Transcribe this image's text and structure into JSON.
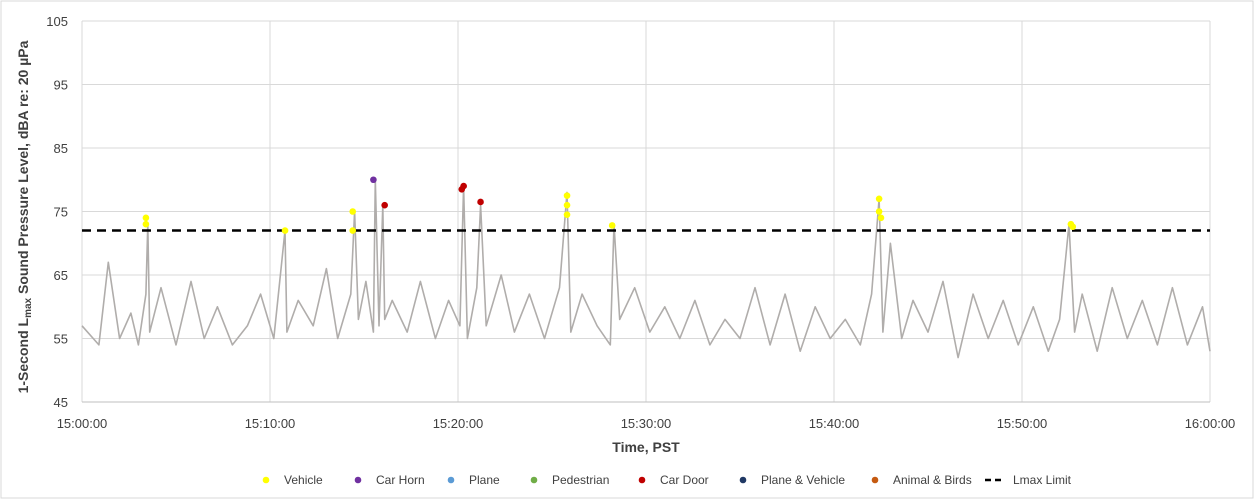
{
  "chart_data": {
    "type": "scatter",
    "title": "",
    "xlabel": "Time, PST",
    "ylabel_pre": "1-Second L",
    "ylabel_sub": "max",
    "ylabel_post": " Sound Pressure Level, dBA re: 20 µPa",
    "xlim_min": [
      0,
      60
    ],
    "x_tick_labels": [
      "15:00:00",
      "15:10:00",
      "15:20:00",
      "15:30:00",
      "15:40:00",
      "15:50:00",
      "16:00:00"
    ],
    "x_tick_values": [
      0,
      10,
      20,
      30,
      40,
      50,
      60
    ],
    "ylim": [
      45,
      105
    ],
    "y_ticks": [
      45,
      55,
      65,
      75,
      85,
      95,
      105
    ],
    "y_tick_labels": [
      "45",
      "55",
      "65",
      "75",
      "85",
      "95",
      "105"
    ],
    "grid": true,
    "legend_placement": "bottom",
    "trace": {
      "color": "#b0adab",
      "x_min": [
        0,
        0.9,
        1.4,
        2.0,
        2.6,
        3.0,
        3.4,
        3.5,
        3.6,
        4.2,
        5.0,
        5.8,
        6.5,
        7.2,
        8.0,
        8.8,
        9.5,
        10.2,
        10.8,
        10.9,
        11.5,
        12.3,
        13.0,
        13.6,
        14.3,
        14.5,
        14.7,
        15.1,
        15.5,
        15.6,
        15.8,
        16.0,
        16.1,
        16.5,
        17.3,
        18.0,
        18.8,
        19.5,
        20.1,
        20.3,
        20.5,
        21.0,
        21.2,
        21.5,
        22.3,
        23.0,
        23.8,
        24.6,
        25.4,
        25.8,
        26.0,
        26.6,
        27.4,
        28.1,
        28.3,
        28.6,
        29.4,
        30.2,
        31.0,
        31.8,
        32.6,
        33.4,
        34.2,
        35.0,
        35.8,
        36.6,
        37.4,
        38.2,
        39.0,
        39.8,
        40.6,
        41.4,
        42.0,
        42.4,
        42.6,
        43.0,
        43.6,
        44.2,
        45.0,
        45.8,
        46.6,
        47.4,
        48.2,
        49.0,
        49.8,
        50.6,
        51.4,
        52.0,
        52.5,
        52.8,
        53.2,
        54.0,
        54.8,
        55.6,
        56.4,
        57.2,
        58.0,
        58.8,
        59.6,
        60
      ],
      "y_dba": [
        57,
        54,
        67,
        55,
        59,
        54,
        62,
        73,
        56,
        63,
        54,
        64,
        55,
        60,
        54,
        57,
        62,
        55,
        72,
        56,
        61,
        57,
        66,
        55,
        62,
        75,
        58,
        64,
        56,
        80,
        57,
        76,
        58,
        61,
        56,
        64,
        55,
        61,
        57,
        79,
        55,
        63,
        76,
        57,
        65,
        56,
        62,
        55,
        63,
        78,
        56,
        62,
        57,
        54,
        73,
        58,
        63,
        56,
        60,
        55,
        61,
        54,
        58,
        55,
        63,
        54,
        62,
        53,
        60,
        55,
        58,
        54,
        62,
        77,
        56,
        70,
        55,
        61,
        56,
        64,
        52,
        62,
        55,
        61,
        54,
        60,
        53,
        58,
        73,
        56,
        62,
        53,
        63,
        55,
        61,
        54,
        63,
        54,
        60,
        53
      ]
    },
    "series": [
      {
        "name": "Vehicle",
        "color": "#ffff00",
        "x": [
          3.4,
          3.4,
          10.8,
          14.4,
          14.4,
          25.8,
          25.8,
          25.8,
          28.2,
          42.4,
          42.4,
          42.5,
          52.6,
          52.7
        ],
        "y": [
          74,
          73,
          72,
          75,
          72,
          77.5,
          76,
          74.5,
          72.8,
          77,
          75,
          74,
          73,
          72.6
        ]
      },
      {
        "name": "Car Horn",
        "color": "#7030a0",
        "x": [
          15.5
        ],
        "y": [
          80
        ]
      },
      {
        "name": "Plane",
        "color": "#5b9bd5",
        "x": [],
        "y": []
      },
      {
        "name": "Pedestrian",
        "color": "#70ad47",
        "x": [],
        "y": []
      },
      {
        "name": "Car Door",
        "color": "#c00000",
        "x": [
          16.1,
          20.2,
          20.3,
          21.2
        ],
        "y": [
          76,
          78.5,
          79,
          76.5
        ]
      },
      {
        "name": "Plane & Vehicle",
        "color": "#203864",
        "x": [],
        "y": []
      },
      {
        "name": "Animal & Birds",
        "color": "#c55a11",
        "x": [],
        "y": []
      }
    ],
    "limit_line": {
      "name": "Lmax Limit",
      "value": 72,
      "color": "#000000"
    }
  }
}
